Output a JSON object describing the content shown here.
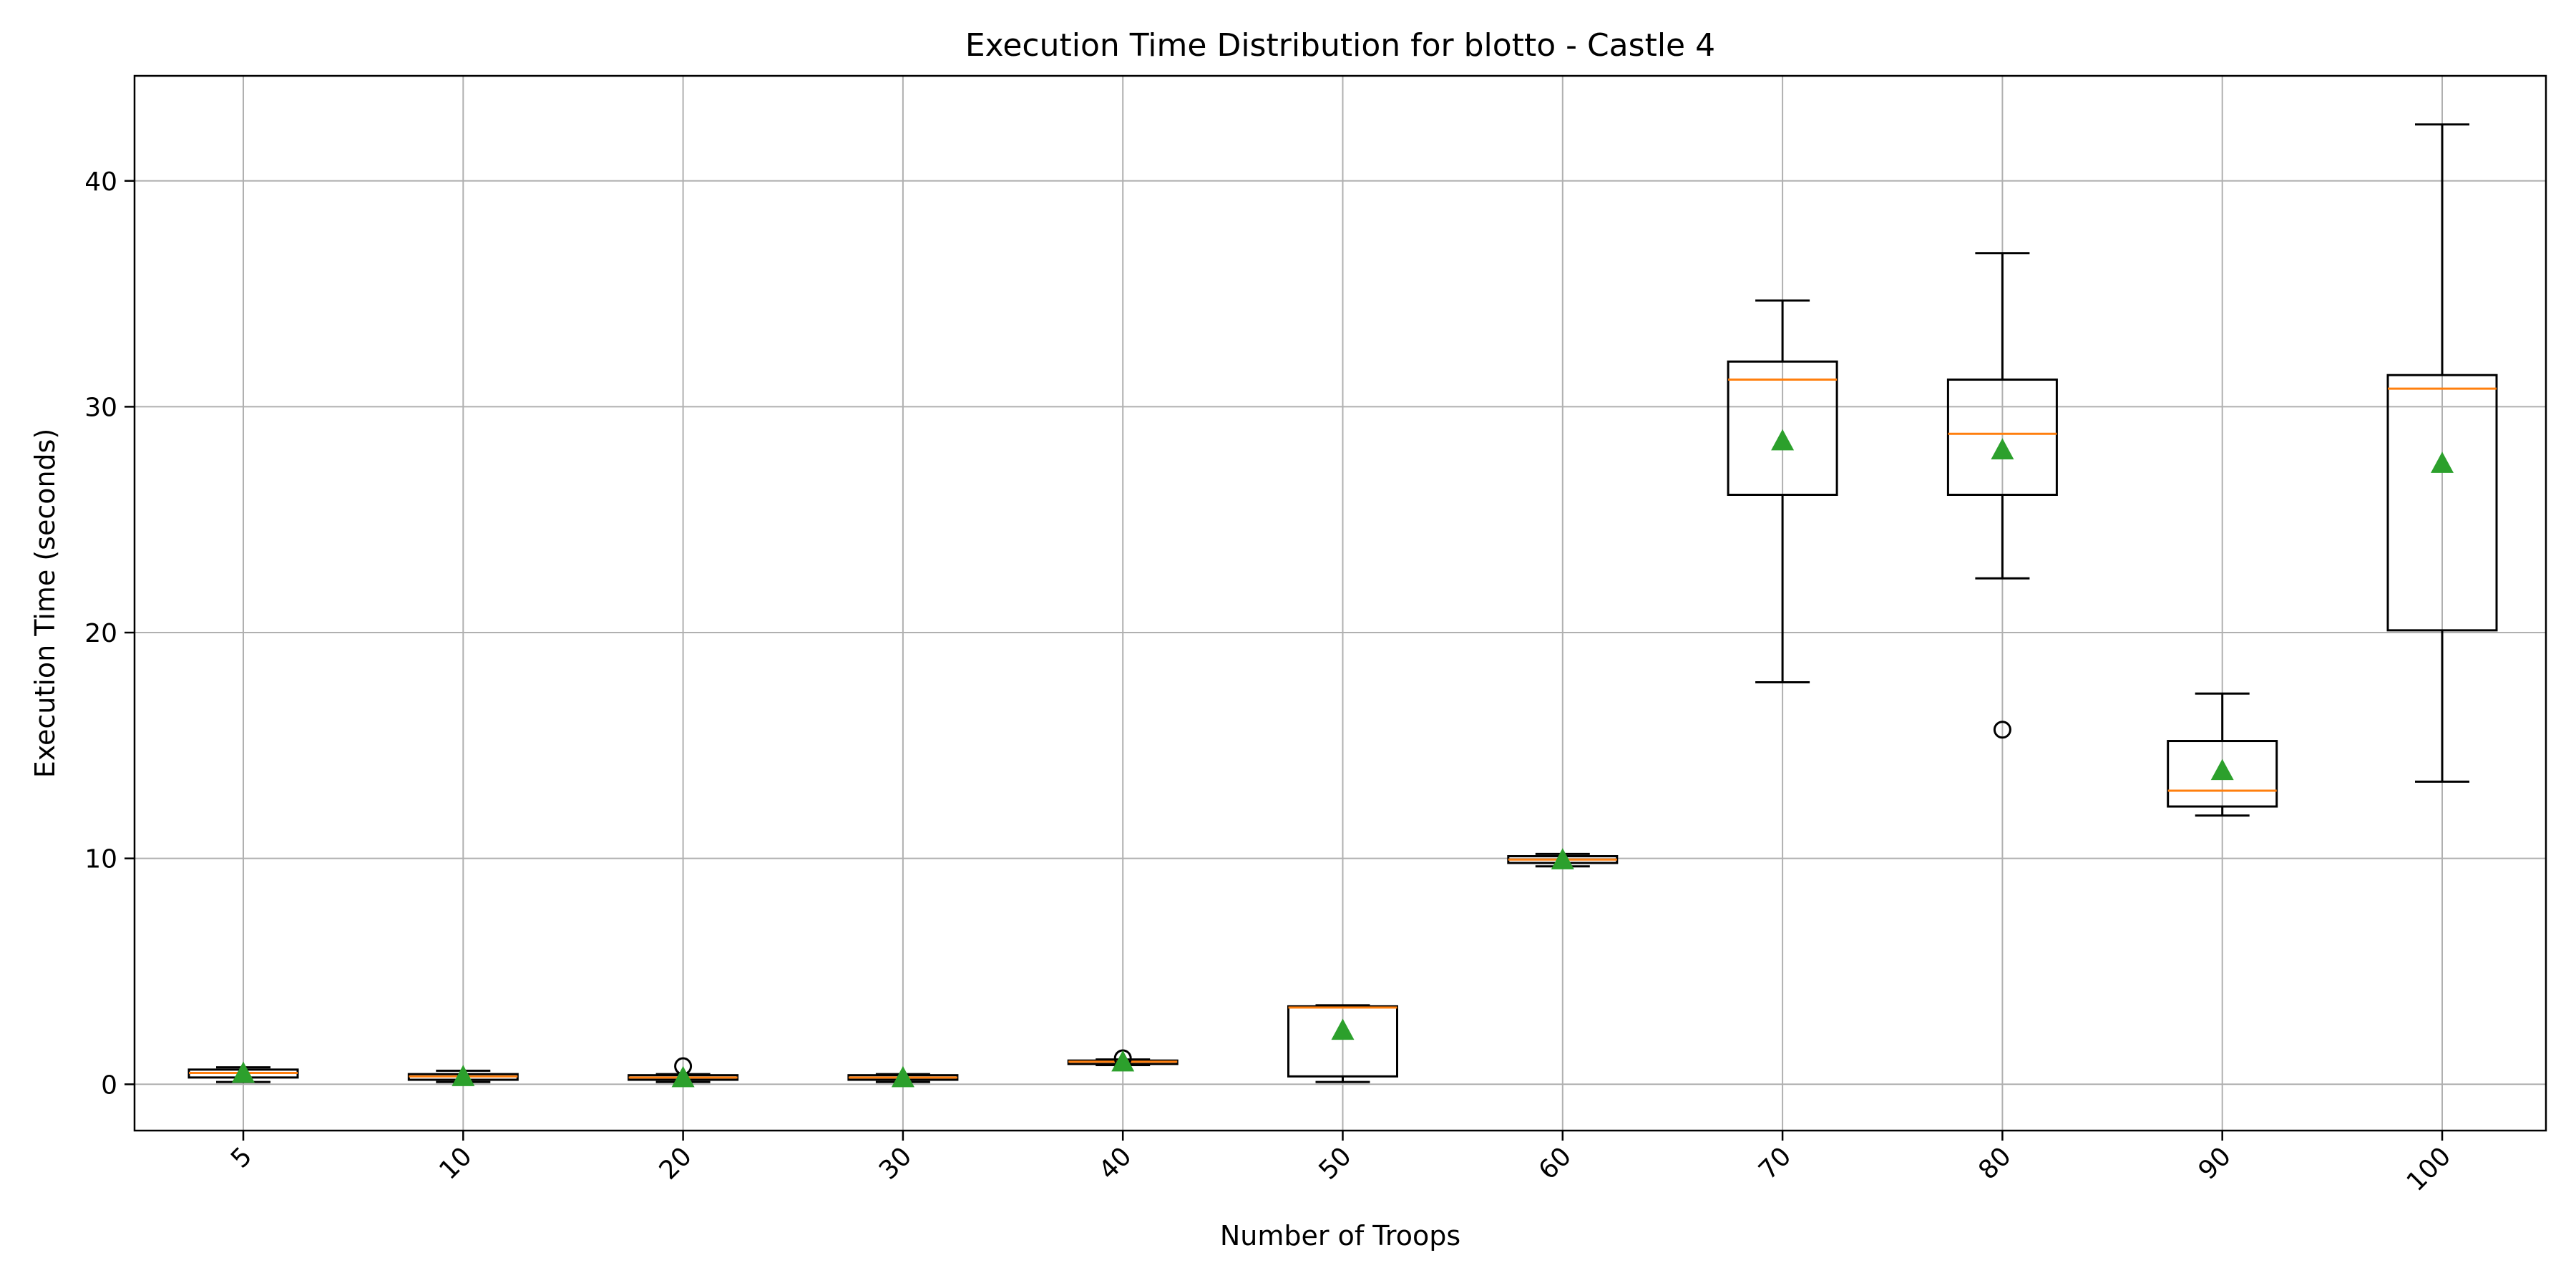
{
  "chart_data": {
    "type": "box",
    "title": "Execution Time Distribution for blotto - Castle 4",
    "xlabel": "Number of Troops",
    "ylabel": "Execution Time (seconds)",
    "ylim": [
      -2.05,
      44.65
    ],
    "yticks": [
      0,
      10,
      20,
      30,
      40
    ],
    "grid": true,
    "categories": [
      "5",
      "10",
      "20",
      "30",
      "40",
      "50",
      "60",
      "70",
      "80",
      "90",
      "100"
    ],
    "boxes": [
      {
        "category": "5",
        "whisker_low": 0.1,
        "q1": 0.3,
        "median": 0.5,
        "q3": 0.65,
        "whisker_high": 0.75,
        "mean": 0.5,
        "outliers": []
      },
      {
        "category": "10",
        "whisker_low": 0.1,
        "q1": 0.2,
        "median": 0.35,
        "q3": 0.45,
        "whisker_high": 0.6,
        "mean": 0.35,
        "outliers": []
      },
      {
        "category": "20",
        "whisker_low": 0.1,
        "q1": 0.2,
        "median": 0.3,
        "q3": 0.4,
        "whisker_high": 0.45,
        "mean": 0.3,
        "outliers": [
          0.8
        ]
      },
      {
        "category": "30",
        "whisker_low": 0.1,
        "q1": 0.2,
        "median": 0.3,
        "q3": 0.4,
        "whisker_high": 0.45,
        "mean": 0.3,
        "outliers": []
      },
      {
        "category": "40",
        "whisker_low": 0.85,
        "q1": 0.9,
        "median": 1.0,
        "q3": 1.05,
        "whisker_high": 1.1,
        "mean": 1.0,
        "outliers": [
          1.15
        ]
      },
      {
        "category": "50",
        "whisker_low": 0.1,
        "q1": 0.35,
        "median": 3.4,
        "q3": 3.45,
        "whisker_high": 3.5,
        "mean": 2.4,
        "outliers": []
      },
      {
        "category": "60",
        "whisker_low": 9.65,
        "q1": 9.8,
        "median": 9.95,
        "q3": 10.1,
        "whisker_high": 10.2,
        "mean": 9.95,
        "outliers": []
      },
      {
        "category": "70",
        "whisker_low": 17.8,
        "q1": 26.1,
        "median": 31.2,
        "q3": 32.0,
        "whisker_high": 34.7,
        "mean": 28.5,
        "outliers": []
      },
      {
        "category": "80",
        "whisker_low": 22.4,
        "q1": 26.1,
        "median": 28.8,
        "q3": 31.2,
        "whisker_high": 36.8,
        "mean": 28.1,
        "outliers": [
          15.7
        ]
      },
      {
        "category": "90",
        "whisker_low": 11.9,
        "q1": 12.3,
        "median": 13.0,
        "q3": 15.2,
        "whisker_high": 17.3,
        "mean": 13.9,
        "outliers": []
      },
      {
        "category": "100",
        "whisker_low": 13.4,
        "q1": 20.1,
        "median": 30.8,
        "q3": 31.4,
        "whisker_high": 42.5,
        "mean": 27.5,
        "outliers": []
      }
    ],
    "colors": {
      "box": "#000000",
      "median": "#ff7f0e",
      "mean": "#2ca02c",
      "grid": "#b0b0b0"
    }
  }
}
